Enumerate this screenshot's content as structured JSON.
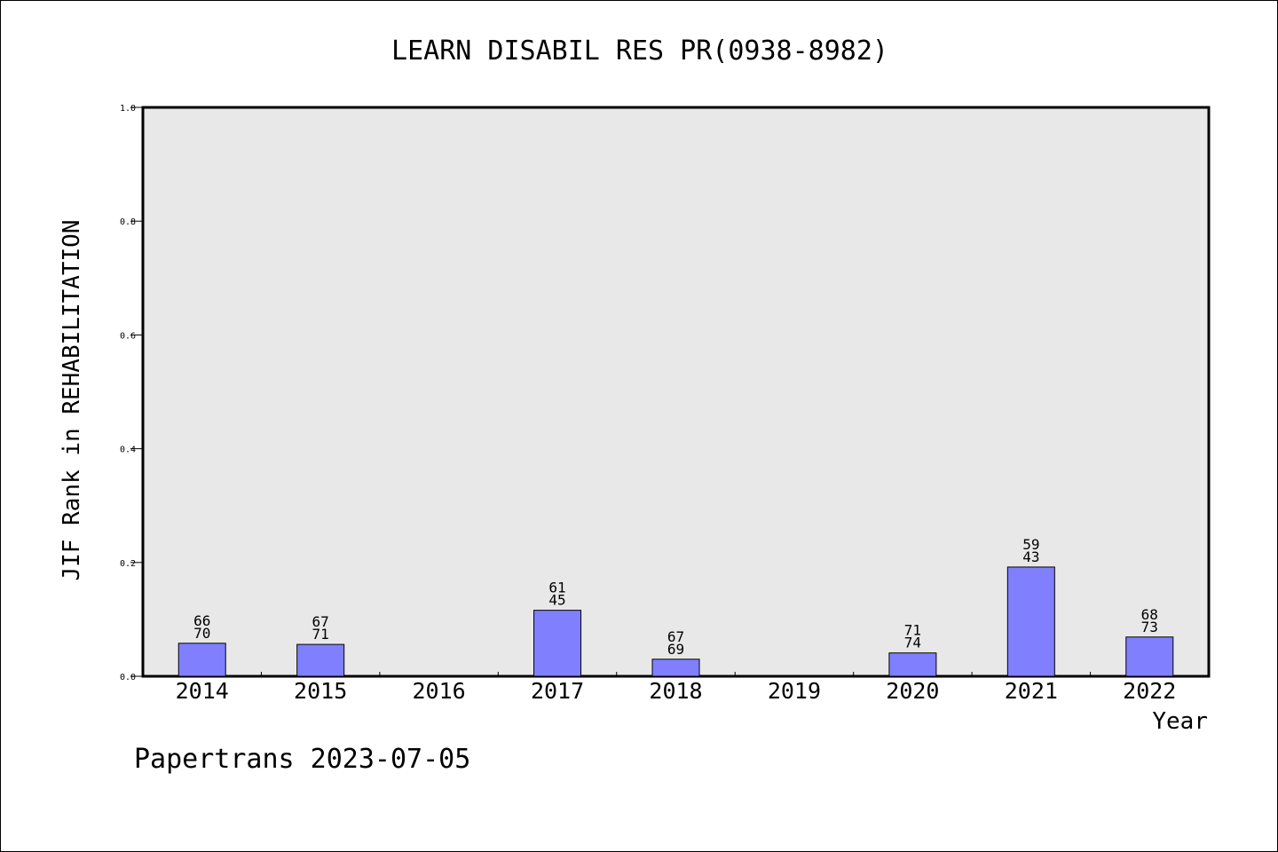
{
  "chart_data": {
    "type": "bar",
    "title": "LEARN DISABIL RES PR(0938-8982)",
    "xlabel": "Year",
    "ylabel": "JIF Rank in REHABILITATION",
    "ylim": [
      0,
      1.0
    ],
    "yticks": [
      "0.0",
      "0.2",
      "0.4",
      "0.6",
      "0.8",
      "1.0"
    ],
    "grid": false,
    "legend": "none",
    "categories": [
      "2014",
      "2015",
      "2016",
      "2017",
      "2018",
      "2019",
      "2020",
      "2021",
      "2022"
    ],
    "values": [
      0.058,
      0.056,
      null,
      0.116,
      0.03,
      null,
      0.041,
      0.192,
      0.069
    ],
    "labels_top": [
      "66",
      "67",
      "",
      "61",
      "67",
      "",
      "71",
      "59",
      "68"
    ],
    "labels_bottom": [
      "70",
      "71",
      "",
      "45",
      "69",
      "",
      "74",
      "43",
      "73"
    ],
    "colors": {
      "bar": "#8080ff",
      "plot_bg": "#e8e8e8",
      "axis": "#000000"
    }
  },
  "footer": {
    "text": "Papertrans 2023-07-05"
  }
}
